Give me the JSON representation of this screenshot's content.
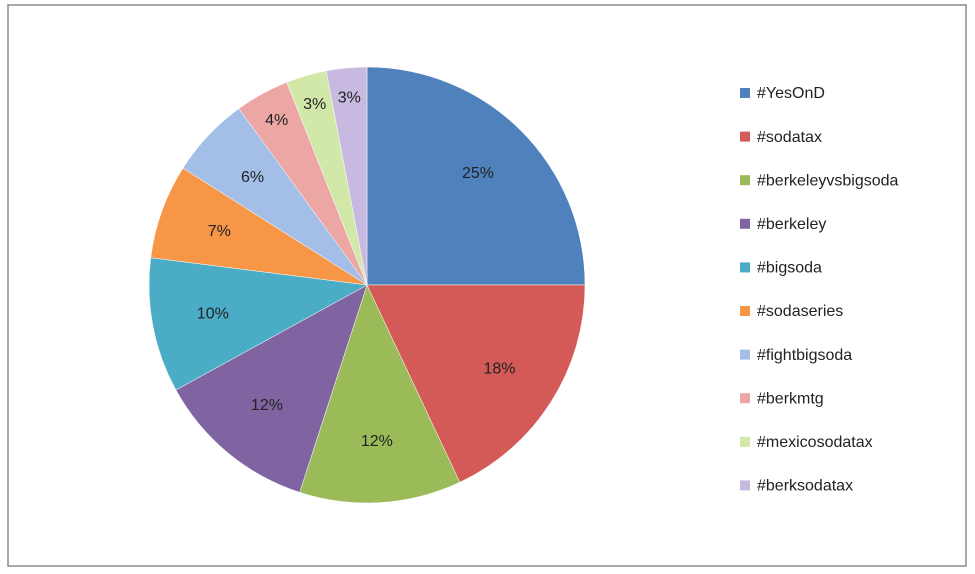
{
  "chart_data": {
    "type": "pie",
    "categories": [
      "#YesOnD",
      "#sodatax",
      "#berkeleyvsbigsoda",
      "#berkeley",
      "#bigsoda",
      "#sodaseries",
      "#fightbigsoda",
      "#berkmtg",
      "#mexicosodatax",
      "#berksodatax"
    ],
    "values": [
      25,
      18,
      12,
      12,
      10,
      7,
      6,
      4,
      3,
      3
    ],
    "value_labels": [
      "25%",
      "18%",
      "12%",
      "12%",
      "10%",
      "7%",
      "6%",
      "4%",
      "3%",
      "3%"
    ],
    "colors": [
      "#4f81bd",
      "#d45a57",
      "#9bbb59",
      "#8064a2",
      "#4bacc6",
      "#f79646",
      "#a3bfe8",
      "#eca7a5",
      "#d2e8a8",
      "#c8b9e0"
    ],
    "legend": "right"
  }
}
